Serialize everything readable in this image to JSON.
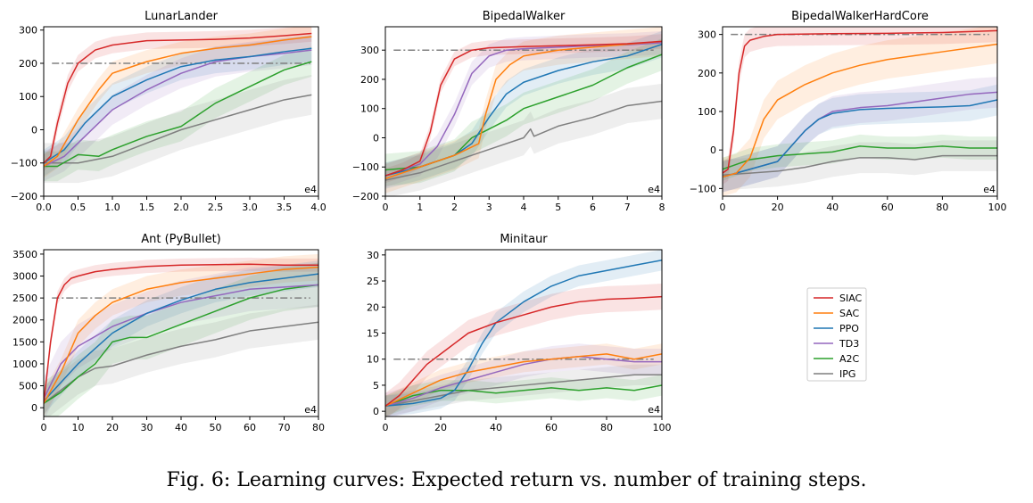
{
  "caption": "Fig. 6: Learning curves: Expected return vs. number of training steps.",
  "legend": {
    "entries": [
      {
        "name": "SIAC",
        "color": "#d62728"
      },
      {
        "name": "SAC",
        "color": "#ff7f0e"
      },
      {
        "name": "PPO",
        "color": "#1f77b4"
      },
      {
        "name": "TD3",
        "color": "#9467bd"
      },
      {
        "name": "A2C",
        "color": "#2ca02c"
      },
      {
        "name": "IPG",
        "color": "#7f7f7f"
      }
    ]
  },
  "chart_data": [
    {
      "type": "line",
      "title": "LunarLander",
      "xlim": [
        0,
        4.0
      ],
      "ylim": [
        -200,
        310
      ],
      "xticks": [
        0.0,
        0.5,
        1.0,
        1.5,
        2.0,
        2.5,
        3.0,
        3.5,
        4.0
      ],
      "xtick_labels": [
        "0.0",
        "0.5",
        "1.0",
        "1.5",
        "2.0",
        "2.5",
        "3.0",
        "3.5",
        "4.0"
      ],
      "yticks": [
        -200,
        -100,
        0,
        100,
        200,
        300
      ],
      "ytick_labels": [
        "−200",
        "−100",
        "0",
        "100",
        "200",
        "300"
      ],
      "x_scale_label": "e4",
      "threshold": 200,
      "series": [
        {
          "name": "SIAC",
          "x": [
            0,
            0.1,
            0.2,
            0.35,
            0.5,
            0.75,
            1.0,
            1.5,
            2.0,
            2.5,
            3.0,
            3.5,
            3.9
          ],
          "y": [
            -100,
            -80,
            20,
            140,
            200,
            240,
            255,
            268,
            270,
            272,
            276,
            283,
            290
          ],
          "band": 25
        },
        {
          "name": "SAC",
          "x": [
            0,
            0.2,
            0.5,
            0.8,
            1.0,
            1.5,
            2.0,
            2.5,
            3.0,
            3.5,
            3.9
          ],
          "y": [
            -110,
            -80,
            30,
            120,
            170,
            205,
            230,
            245,
            255,
            270,
            280
          ],
          "band": 35
        },
        {
          "name": "PPO",
          "x": [
            0,
            0.3,
            0.6,
            1.0,
            1.5,
            2.0,
            2.5,
            3.0,
            3.5,
            3.9
          ],
          "y": [
            -100,
            -60,
            20,
            100,
            150,
            190,
            210,
            220,
            235,
            245
          ],
          "band": 40
        },
        {
          "name": "TD3",
          "x": [
            0,
            0.3,
            0.6,
            1.0,
            1.5,
            2.0,
            2.5,
            3.0,
            3.5,
            3.9
          ],
          "y": [
            -110,
            -80,
            -20,
            60,
            120,
            170,
            205,
            220,
            230,
            240
          ],
          "band": 45
        },
        {
          "name": "A2C",
          "x": [
            0,
            0.2,
            0.5,
            0.8,
            1.0,
            1.5,
            2.0,
            2.5,
            3.0,
            3.5,
            3.9
          ],
          "y": [
            -110,
            -110,
            -75,
            -80,
            -60,
            -20,
            10,
            80,
            130,
            180,
            205
          ],
          "band": 45
        },
        {
          "name": "IPG",
          "x": [
            0,
            0.5,
            1.0,
            1.5,
            2.0,
            2.5,
            3.0,
            3.5,
            3.9
          ],
          "y": [
            -100,
            -100,
            -80,
            -40,
            0,
            30,
            60,
            90,
            105
          ],
          "band": 60
        }
      ]
    },
    {
      "type": "line",
      "title": "BipedalWalker",
      "xlim": [
        0,
        8
      ],
      "ylim": [
        -200,
        380
      ],
      "xticks": [
        0,
        1,
        2,
        3,
        4,
        5,
        6,
        7,
        8
      ],
      "xtick_labels": [
        "0",
        "1",
        "2",
        "3",
        "4",
        "5",
        "6",
        "7",
        "8"
      ],
      "yticks": [
        -200,
        -100,
        0,
        100,
        200,
        300
      ],
      "ytick_labels": [
        "−200",
        "−100",
        "0",
        "100",
        "200",
        "300"
      ],
      "x_scale_label": "e4",
      "threshold": 300,
      "series": [
        {
          "name": "SIAC",
          "x": [
            0,
            0.5,
            1.0,
            1.3,
            1.6,
            2.0,
            2.5,
            3.0,
            4.0,
            5.0,
            6.0,
            7.0,
            8.0
          ],
          "y": [
            -130,
            -110,
            -80,
            20,
            180,
            270,
            300,
            308,
            312,
            315,
            318,
            322,
            330
          ],
          "band": 25
        },
        {
          "name": "SAC",
          "x": [
            0,
            1.0,
            2.0,
            2.7,
            2.9,
            3.2,
            3.6,
            4.0,
            5.0,
            6.0,
            7.0,
            8.0
          ],
          "y": [
            -140,
            -100,
            -60,
            -20,
            80,
            200,
            250,
            280,
            300,
            310,
            320,
            330
          ],
          "band": 50
        },
        {
          "name": "PPO",
          "x": [
            0,
            1.0,
            2.0,
            2.5,
            3.0,
            3.5,
            4.0,
            5.0,
            6.0,
            7.0,
            8.0
          ],
          "y": [
            -130,
            -100,
            -60,
            -20,
            70,
            150,
            190,
            230,
            260,
            280,
            320
          ],
          "band": 45
        },
        {
          "name": "TD3",
          "x": [
            0,
            1.0,
            1.5,
            2.0,
            2.5,
            3.0,
            3.5,
            4.0,
            5.0,
            6.0,
            7.0,
            8.0
          ],
          "y": [
            -130,
            -90,
            -30,
            80,
            220,
            280,
            300,
            305,
            310,
            315,
            318,
            325
          ],
          "band": 40
        },
        {
          "name": "A2C",
          "x": [
            0,
            1.0,
            2.0,
            2.5,
            3.0,
            3.5,
            4.0,
            5.0,
            6.0,
            7.0,
            8.0
          ],
          "y": [
            -110,
            -100,
            -60,
            0,
            30,
            60,
            100,
            140,
            180,
            240,
            285
          ],
          "band": 55
        },
        {
          "name": "IPG",
          "x": [
            0,
            1.0,
            2.0,
            3.0,
            4.0,
            4.2,
            4.3,
            5.0,
            6.0,
            7.0,
            8.0
          ],
          "y": [
            -145,
            -120,
            -80,
            -40,
            0,
            30,
            5,
            40,
            70,
            110,
            125
          ],
          "band": 60
        }
      ]
    },
    {
      "type": "line",
      "title": "BipedalWalkerHardCore",
      "xlim": [
        0,
        100
      ],
      "ylim": [
        -120,
        320
      ],
      "xticks": [
        0,
        20,
        40,
        60,
        80,
        100
      ],
      "xtick_labels": [
        "0",
        "20",
        "40",
        "60",
        "80",
        "100"
      ],
      "yticks": [
        -100,
        0,
        100,
        200,
        300
      ],
      "ytick_labels": [
        "−100",
        "0",
        "100",
        "200",
        "300"
      ],
      "x_scale_label": "e4",
      "threshold": 300,
      "series": [
        {
          "name": "SIAC",
          "x": [
            0,
            2,
            4,
            6,
            8,
            10,
            15,
            20,
            40,
            60,
            80,
            100
          ],
          "y": [
            -60,
            -50,
            50,
            200,
            270,
            285,
            295,
            300,
            302,
            303,
            305,
            310
          ],
          "band": 30
        },
        {
          "name": "SAC",
          "x": [
            0,
            5,
            10,
            15,
            20,
            30,
            40,
            50,
            60,
            70,
            80,
            90,
            100
          ],
          "y": [
            -70,
            -60,
            -20,
            80,
            130,
            170,
            200,
            220,
            235,
            245,
            255,
            265,
            275
          ],
          "band": 50
        },
        {
          "name": "PPO",
          "x": [
            0,
            10,
            20,
            25,
            30,
            35,
            40,
            50,
            60,
            70,
            80,
            90,
            100
          ],
          "y": [
            -70,
            -50,
            -30,
            10,
            50,
            80,
            95,
            105,
            108,
            110,
            112,
            115,
            130
          ],
          "band": 40
        },
        {
          "name": "TD3",
          "x": [
            0,
            10,
            20,
            25,
            30,
            35,
            40,
            50,
            60,
            70,
            80,
            90,
            100
          ],
          "y": [
            -70,
            -50,
            -30,
            10,
            50,
            80,
            100,
            110,
            115,
            125,
            135,
            145,
            150
          ],
          "band": 40
        },
        {
          "name": "A2C",
          "x": [
            0,
            10,
            20,
            30,
            40,
            50,
            60,
            70,
            80,
            90,
            100
          ],
          "y": [
            -50,
            -25,
            -15,
            -10,
            -5,
            10,
            5,
            5,
            10,
            5,
            5
          ],
          "band": 30
        },
        {
          "name": "IPG",
          "x": [
            0,
            10,
            20,
            30,
            40,
            50,
            60,
            70,
            80,
            90,
            100
          ],
          "y": [
            -65,
            -60,
            -55,
            -45,
            -30,
            -20,
            -20,
            -25,
            -15,
            -15,
            -15
          ],
          "band": 40
        }
      ]
    },
    {
      "type": "line",
      "title": "Ant (PyBullet)",
      "xlim": [
        0,
        80
      ],
      "ylim": [
        -200,
        3600
      ],
      "xticks": [
        0,
        10,
        20,
        30,
        40,
        50,
        60,
        70,
        80
      ],
      "xtick_labels": [
        "0",
        "10",
        "20",
        "30",
        "40",
        "50",
        "60",
        "70",
        "80"
      ],
      "yticks": [
        0,
        500,
        1000,
        1500,
        2000,
        2500,
        3000,
        3500
      ],
      "ytick_labels": [
        "0",
        "500",
        "1000",
        "1500",
        "2000",
        "2500",
        "3000",
        "3500"
      ],
      "x_scale_label": "e4",
      "threshold": 2500,
      "series": [
        {
          "name": "SIAC",
          "x": [
            0,
            2,
            4,
            6,
            8,
            10,
            15,
            20,
            30,
            40,
            50,
            60,
            70,
            80
          ],
          "y": [
            100,
            1500,
            2500,
            2800,
            2950,
            3000,
            3100,
            3150,
            3220,
            3250,
            3260,
            3270,
            3250,
            3250
          ],
          "band": 150
        },
        {
          "name": "SAC",
          "x": [
            0,
            5,
            10,
            15,
            20,
            30,
            40,
            50,
            60,
            70,
            80
          ],
          "y": [
            100,
            800,
            1700,
            2100,
            2400,
            2700,
            2850,
            2950,
            3050,
            3150,
            3200
          ],
          "band": 300
        },
        {
          "name": "PPO",
          "x": [
            0,
            10,
            20,
            30,
            40,
            50,
            60,
            70,
            80
          ],
          "y": [
            150,
            1000,
            1700,
            2150,
            2450,
            2700,
            2850,
            2950,
            3050
          ],
          "band": 300
        },
        {
          "name": "TD3",
          "x": [
            0,
            5,
            10,
            20,
            30,
            40,
            50,
            60,
            70,
            80
          ],
          "y": [
            200,
            1000,
            1400,
            1850,
            2150,
            2400,
            2550,
            2700,
            2750,
            2800
          ],
          "band": 500
        },
        {
          "name": "A2C",
          "x": [
            0,
            5,
            10,
            15,
            20,
            25,
            30,
            40,
            50,
            60,
            70,
            80
          ],
          "y": [
            100,
            350,
            700,
            1000,
            1500,
            1600,
            1600,
            1900,
            2200,
            2500,
            2700,
            2800
          ],
          "band": 500
        },
        {
          "name": "IPG",
          "x": [
            0,
            5,
            10,
            15,
            20,
            30,
            40,
            50,
            60,
            70,
            80
          ],
          "y": [
            100,
            400,
            700,
            900,
            950,
            1200,
            1400,
            1550,
            1750,
            1850,
            1950
          ],
          "band": 400
        }
      ]
    },
    {
      "type": "line",
      "title": "Minitaur",
      "xlim": [
        0,
        100
      ],
      "ylim": [
        -1,
        31
      ],
      "xticks": [
        0,
        20,
        40,
        60,
        80,
        100
      ],
      "xtick_labels": [
        "0",
        "20",
        "40",
        "60",
        "80",
        "100"
      ],
      "yticks": [
        0,
        5,
        10,
        15,
        20,
        25,
        30
      ],
      "ytick_labels": [
        "0",
        "5",
        "10",
        "15",
        "20",
        "25",
        "30"
      ],
      "x_scale_label": "e4",
      "threshold": 10,
      "series": [
        {
          "name": "SIAC",
          "x": [
            0,
            5,
            10,
            15,
            20,
            25,
            30,
            40,
            50,
            60,
            70,
            80,
            90,
            100
          ],
          "y": [
            1,
            3,
            6,
            9,
            11,
            13,
            15,
            17,
            18.5,
            20,
            21,
            21.5,
            21.7,
            22
          ],
          "band": 2.5
        },
        {
          "name": "SAC",
          "x": [
            0,
            10,
            20,
            30,
            40,
            50,
            60,
            70,
            80,
            90,
            100
          ],
          "y": [
            1,
            3.5,
            6,
            7.5,
            8.5,
            9.5,
            10,
            10.5,
            11,
            10,
            11
          ],
          "band": 2
        },
        {
          "name": "PPO",
          "x": [
            0,
            10,
            20,
            25,
            30,
            35,
            40,
            50,
            60,
            70,
            80,
            90,
            100
          ],
          "y": [
            1,
            1.5,
            2.5,
            4,
            8,
            13,
            17,
            21,
            24,
            26,
            27,
            28,
            29
          ],
          "band": 2
        },
        {
          "name": "TD3",
          "x": [
            0,
            10,
            20,
            30,
            40,
            50,
            60,
            70,
            80,
            90,
            100
          ],
          "y": [
            1,
            2.5,
            4.5,
            6,
            7.5,
            9,
            10,
            10.5,
            10,
            9.5,
            9.5
          ],
          "band": 2.5
        },
        {
          "name": "A2C",
          "x": [
            0,
            10,
            20,
            30,
            40,
            50,
            60,
            70,
            80,
            90,
            100
          ],
          "y": [
            1,
            3,
            4,
            4,
            3.5,
            4,
            4.5,
            4,
            4.5,
            4,
            5
          ],
          "band": 2
        },
        {
          "name": "IPG",
          "x": [
            0,
            10,
            20,
            30,
            40,
            50,
            60,
            70,
            80,
            90,
            100
          ],
          "y": [
            1,
            2,
            3,
            4,
            4.5,
            5,
            5.5,
            6,
            6.5,
            7,
            7
          ],
          "band": 2
        }
      ]
    }
  ]
}
